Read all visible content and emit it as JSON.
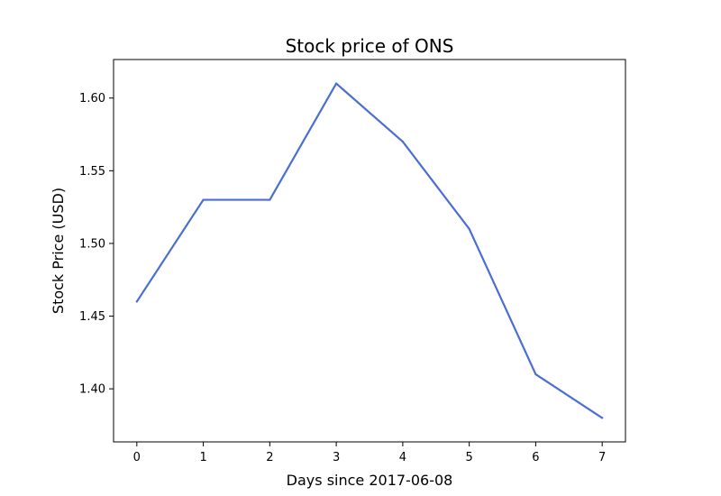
{
  "chart_data": {
    "type": "line",
    "title": "Stock price of ONS",
    "xlabel": "Days since 2017-06-08",
    "ylabel": "Stock Price (USD)",
    "x": [
      0,
      1,
      2,
      3,
      4,
      5,
      6,
      7
    ],
    "series": [
      {
        "values": [
          1.46,
          1.53,
          1.53,
          1.61,
          1.57,
          1.51,
          1.41,
          1.38
        ],
        "color": "#4a6fd1"
      }
    ],
    "xticks": [
      "0",
      "1",
      "2",
      "3",
      "4",
      "5",
      "6",
      "7"
    ],
    "yticks": [
      "1.40",
      "1.45",
      "1.50",
      "1.55",
      "1.60"
    ],
    "xlim": [
      -0.35,
      7.35
    ],
    "ylim": [
      1.3635,
      1.6265
    ],
    "grid": false
  }
}
